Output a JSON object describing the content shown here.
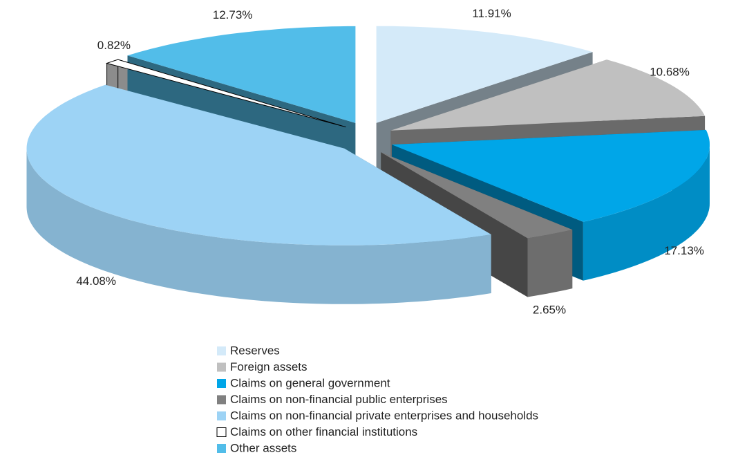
{
  "chart_data": {
    "type": "pie",
    "categories": [
      "Reserves",
      "Foreign assets",
      "Claims on general government",
      "Claims on non-financial public enterprises",
      "Claims on non-financial private enterprises and households",
      "Claims on other financial institutions",
      "Other assets"
    ],
    "values": [
      11.91,
      10.68,
      17.13,
      2.65,
      44.08,
      0.82,
      12.73
    ],
    "value_labels": [
      "11.91%",
      "10.68%",
      "17.13%",
      "2.65%",
      "44.08%",
      "0.82%",
      "12.73%"
    ],
    "colors": [
      "#d4eaf9",
      "#c0c0c0",
      "#00a6e8",
      "#808080",
      "#9dd3f5",
      "#ffffff",
      "#52bde9"
    ],
    "legend": "bottom"
  }
}
